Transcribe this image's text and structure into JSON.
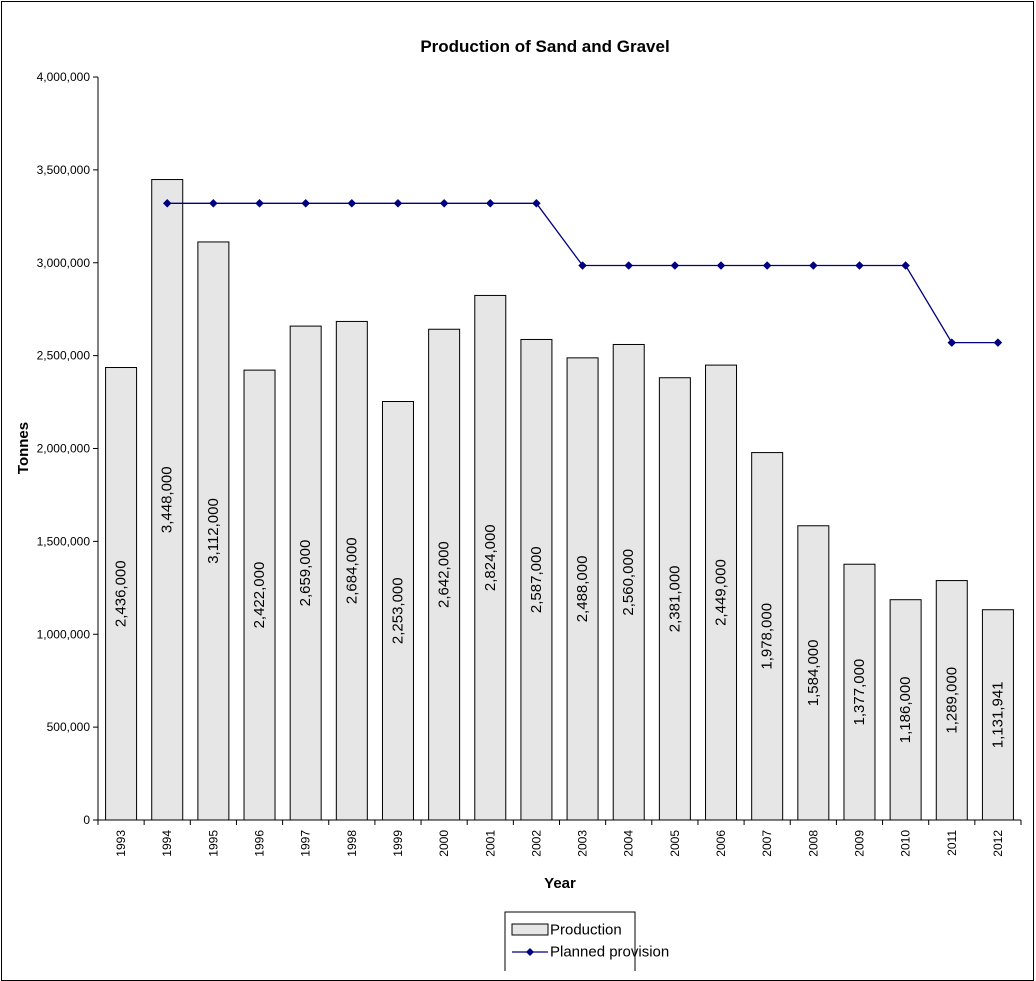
{
  "chart_data": {
    "type": "bar",
    "title": "Production of Sand and Gravel",
    "xlabel": "Year",
    "ylabel": "Tonnes",
    "ylim": [
      0,
      4000000
    ],
    "y_ticks": [
      "0",
      "500,000",
      "1,000,000",
      "1,500,000",
      "2,000,000",
      "2,500,000",
      "3,000,000",
      "3,500,000",
      "4,000,000"
    ],
    "categories": [
      "1993",
      "1994",
      "1995",
      "1996",
      "1997",
      "1998",
      "1999",
      "2000",
      "2001",
      "2002",
      "2003",
      "2004",
      "2005",
      "2006",
      "2007",
      "2008",
      "2009",
      "2010",
      "2011",
      "2012"
    ],
    "series": [
      {
        "name": "Production",
        "kind": "bar",
        "color": "#e6e6e6",
        "values": [
          2436000,
          3448000,
          3112000,
          2422000,
          2659000,
          2684000,
          2253000,
          2642000,
          2824000,
          2587000,
          2488000,
          2560000,
          2381000,
          2449000,
          1978000,
          1584000,
          1377000,
          1186000,
          1289000,
          1131941
        ],
        "labels": [
          "2,436,000",
          "3,448,000",
          "3,112,000",
          "2,422,000",
          "2,659,000",
          "2,684,000",
          "2,253,000",
          "2,642,000",
          "2,824,000",
          "2,587,000",
          "2,488,000",
          "2,560,000",
          "2,381,000",
          "2,449,000",
          "1,978,000",
          "1,584,000",
          "1,377,000",
          "1,186,000",
          "1,289,000",
          "1,131,941"
        ]
      },
      {
        "name": "Planned provision",
        "kind": "line",
        "color": "#000080",
        "values": [
          null,
          3320000,
          3320000,
          3320000,
          3320000,
          3320000,
          3320000,
          3320000,
          3320000,
          3320000,
          2985000,
          2985000,
          2985000,
          2985000,
          2985000,
          2985000,
          2985000,
          2985000,
          2570000,
          2570000
        ]
      }
    ],
    "legend_position": "bottom",
    "grid": false
  }
}
